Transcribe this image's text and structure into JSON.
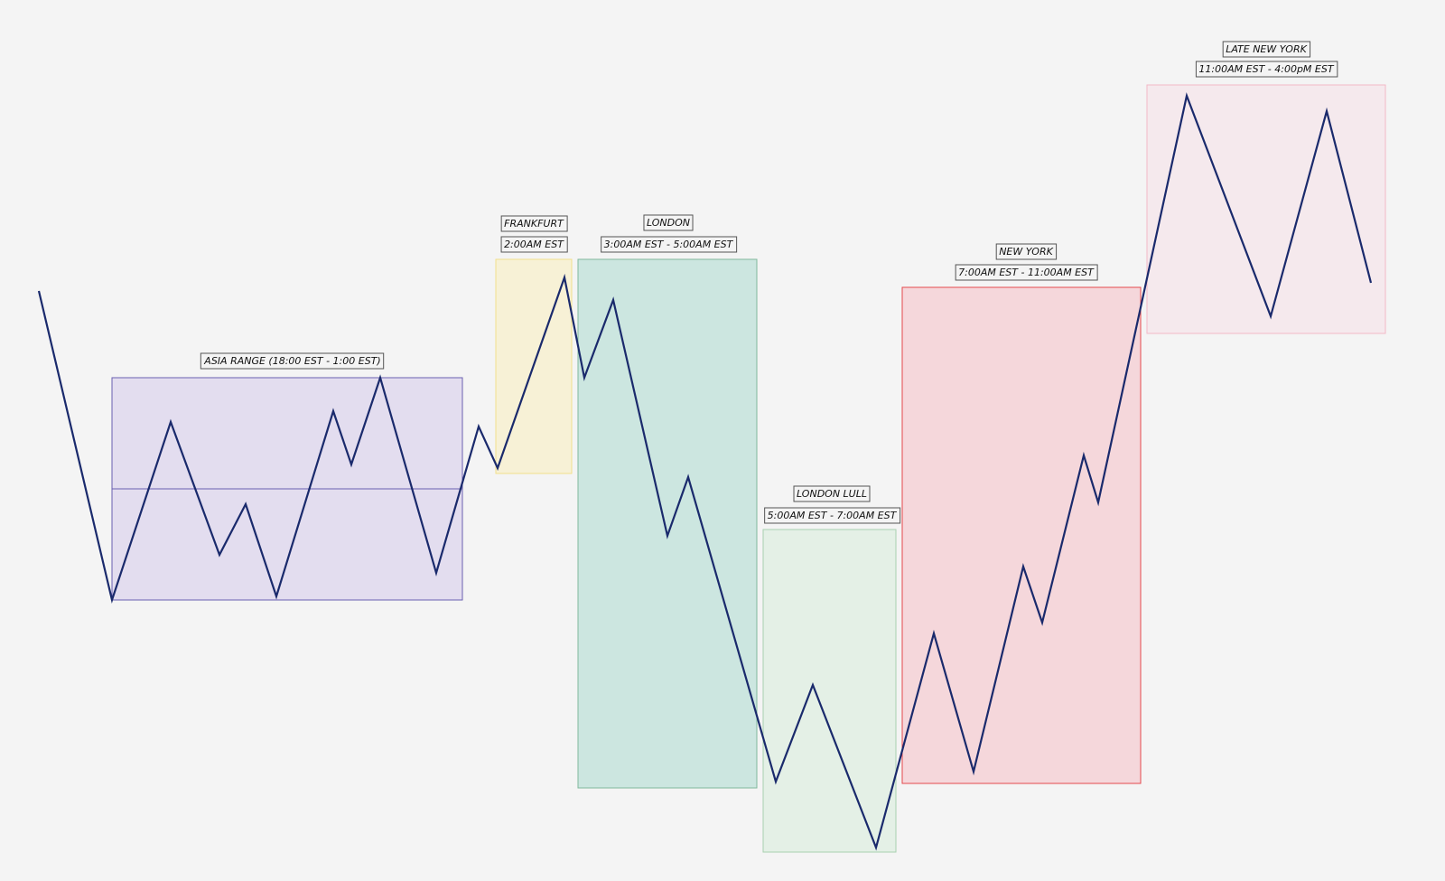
{
  "chart_data": {
    "type": "line",
    "title": "",
    "xlabel": "",
    "ylabel": "",
    "grid": false,
    "legend": "none",
    "line_color": "#1a2a6c",
    "sessions": [
      {
        "title": "ASIA RANGE (18:00 EST - 1:00 EST)",
        "time": "",
        "fill": "#e3ddef",
        "stroke": "#6a5fb0",
        "has_midline": true
      },
      {
        "title": "FRANKFURT",
        "time": "2:00AM EST",
        "fill": "#f7f1d6",
        "stroke": "#f2df8c",
        "has_midline": false
      },
      {
        "title": "LONDON",
        "time": "3:00AM EST - 5:00AM EST",
        "fill": "#cce6e0",
        "stroke": "#7fb89b",
        "has_midline": false
      },
      {
        "title": "LONDON LULL",
        "time": "5:00AM EST - 7:00AM EST",
        "fill": "#e4f0e6",
        "stroke": "#a9d1b0",
        "has_midline": false
      },
      {
        "title": "NEW YORK",
        "time": "7:00AM EST - 11:00AM EST",
        "fill": "#f5d7db",
        "stroke": "#e5484d",
        "has_midline": false
      },
      {
        "title": "LATE NEW YORK",
        "time": "11:00AM EST - 4:00pM EST",
        "fill": "#f5e9ed",
        "stroke": "#f2b9c6",
        "has_midline": false
      }
    ],
    "series": [
      {
        "values": []
      }
    ]
  }
}
